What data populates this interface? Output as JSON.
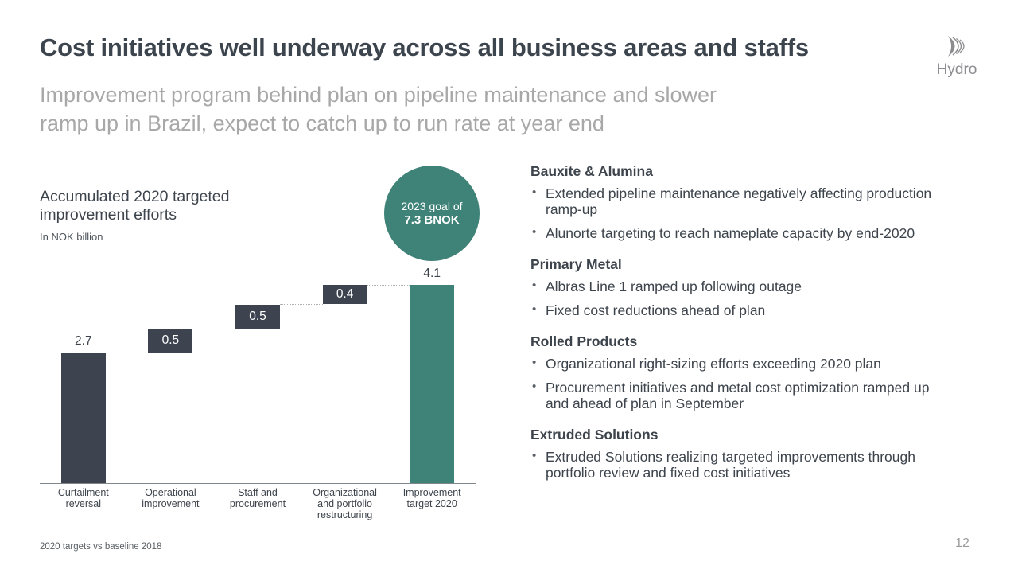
{
  "header": {
    "title": "Cost initiatives well underway across all business areas and staffs",
    "subtitle": "Improvement program behind plan on pipeline maintenance and slower\nramp up in Brazil, expect to catch up to run rate at year end",
    "logo_text": "Hydro"
  },
  "chart": {
    "heading": "Accumulated 2020 targeted\nimprovement efforts",
    "unit_label": "In NOK billion",
    "goal_circle": {
      "line1": "2023 goal of",
      "line2": "7.3 BNOK",
      "color": "#3f8277"
    }
  },
  "chart_data": {
    "type": "bar",
    "subtype": "waterfall",
    "title": "Accumulated 2020 targeted improvement efforts",
    "ylabel": "In NOK billion",
    "categories": [
      "Curtailment\nreversal",
      "Operational\nimprovement",
      "Staff and\nprocurement",
      "Organizational\nand portfolio\nrestructuring",
      "Improvement\ntarget 2020"
    ],
    "values": [
      2.7,
      0.5,
      0.5,
      0.4,
      4.1
    ],
    "value_labels": [
      "2.7",
      "0.5",
      "0.5",
      "0.4",
      "4.1"
    ],
    "is_total": [
      false,
      false,
      false,
      false,
      true
    ],
    "value_label_position": [
      "above",
      "inside",
      "inside",
      "inside",
      "above"
    ],
    "ylim": [
      0,
      4.4
    ],
    "grid": false,
    "legend": false,
    "bar_color": "#3d4450",
    "total_bar_color": "#3f8277",
    "connector_color": "#b0b0b0"
  },
  "sections": [
    {
      "heading": "Bauxite & Alumina",
      "bullets": [
        "Extended pipeline maintenance negatively affecting production\nramp-up",
        "Alunorte targeting to reach nameplate capacity by end-2020"
      ]
    },
    {
      "heading": "Primary Metal",
      "bullets": [
        "Albras Line 1 ramped up following outage",
        "Fixed cost reductions ahead of plan"
      ]
    },
    {
      "heading": "Rolled Products",
      "bullets": [
        "Organizational right-sizing efforts exceeding 2020 plan",
        "Procurement initiatives and metal cost optimization ramped up\nand ahead of plan in September"
      ]
    },
    {
      "heading": "Extruded Solutions",
      "bullets": [
        "Extruded Solutions realizing targeted improvements through\nportfolio review and fixed cost initiatives"
      ]
    }
  ],
  "footer": {
    "footnote": "2020 targets vs baseline 2018",
    "page_number": "12"
  },
  "colors": {
    "title": "#3c444d",
    "subtitle": "#a8a8a8",
    "body_text": "#3d444c",
    "logo": "#8b8b90",
    "axis": "#7f868c"
  }
}
